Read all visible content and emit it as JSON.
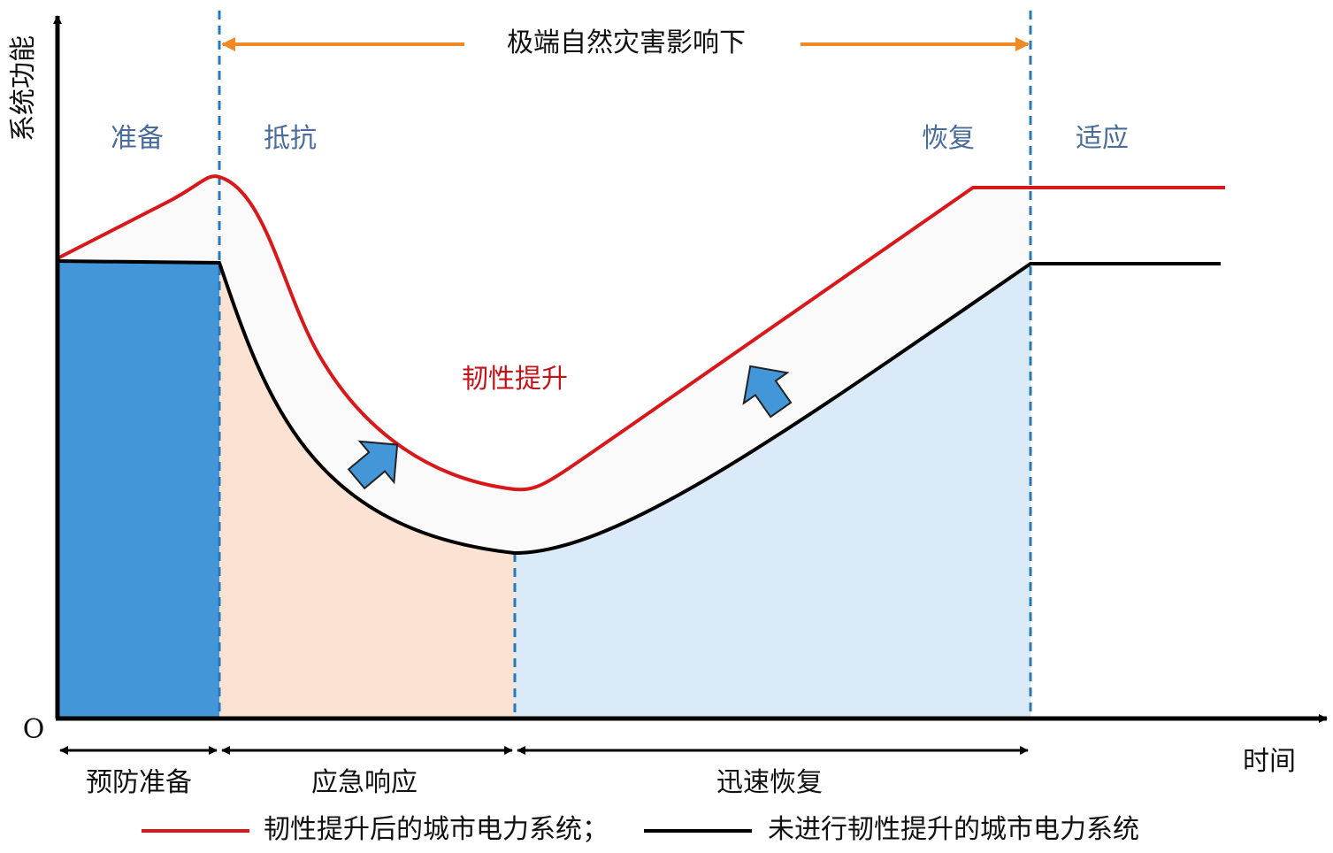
{
  "axes": {
    "y_label": "系统功能",
    "x_label": "时间",
    "origin": "O"
  },
  "banner": "极端自然灾害影响下",
  "phases": [
    "准备",
    "抵抗",
    "恢复",
    "适应"
  ],
  "annotation": "韧性提升",
  "periods": [
    "预防准备",
    "应急响应",
    "迅速恢复"
  ],
  "legend": [
    "韧性提升后的城市电力系统；",
    "未进行韧性提升的城市电力系统"
  ]
}
